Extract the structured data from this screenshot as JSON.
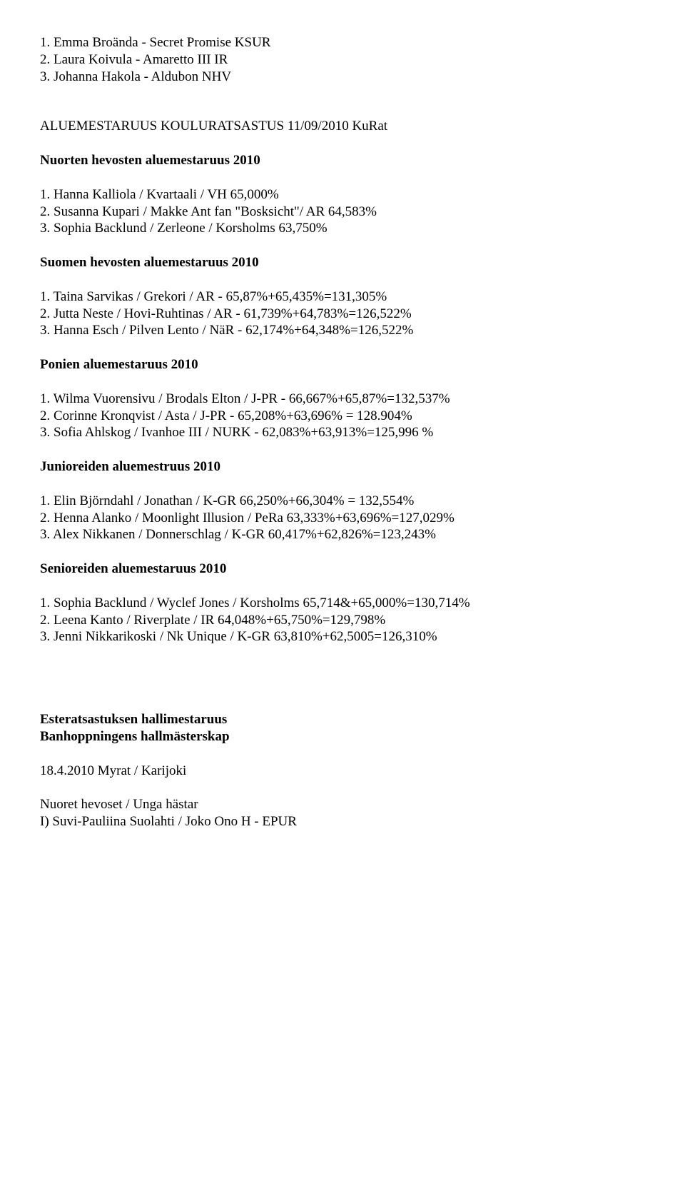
{
  "top_list": [
    "1. Emma Broända - Secret Promise KSUR",
    "2. Laura Koivula - Amaretto III IR",
    "3. Johanna Hakola - Aldubon NHV"
  ],
  "main_heading": "ALUEMESTARUUS KOULURATSASTUS 11/09/2010 KuRat",
  "sections": [
    {
      "heading": "Nuorten hevosten aluemestaruus 2010",
      "items": [
        "1. Hanna Kalliola / Kvartaali / VH 65,000%",
        "2. Susanna Kupari / Makke Ant fan \"Bosksicht\"/ AR 64,583%",
        "3. Sophia Backlund / Zerleone / Korsholms 63,750%"
      ]
    },
    {
      "heading": "Suomen hevosten aluemestaruus 2010",
      "items": [
        "1. Taina Sarvikas / Grekori / AR - 65,87%+65,435%=131,305%",
        "2. Jutta Neste / Hovi-Ruhtinas / AR - 61,739%+64,783%=126,522%",
        "3. Hanna Esch / Pilven Lento / NäR - 62,174%+64,348%=126,522%"
      ]
    },
    {
      "heading": "Ponien aluemestaruus 2010",
      "items": [
        "1. Wilma Vuorensivu / Brodals Elton / J-PR - 66,667%+65,87%=132,537%",
        "2. Corinne Kronqvist / Asta / J-PR - 65,208%+63,696% = 128.904%",
        "3. Sofia Ahlskog / Ivanhoe III / NURK - 62,083%+63,913%=125,996 %"
      ]
    },
    {
      "heading": "Junioreiden aluemestruus 2010",
      "items": [
        "1. Elin Björndahl / Jonathan / K-GR 66,250%+66,304% = 132,554%",
        "2. Henna Alanko / Moonlight Illusion / PeRa 63,333%+63,696%=127,029%",
        "3. Alex Nikkanen / Donnerschlag / K-GR 60,417%+62,826%=123,243%"
      ]
    },
    {
      "heading": "Senioreiden aluemestaruus 2010",
      "items": [
        "1. Sophia Backlund / Wyclef Jones / Korsholms 65,714&+65,000%=130,714%",
        "2. Leena Kanto / Riverplate / IR 64,048%+65,750%=129,798%",
        "3. Jenni Nikkarikoski / Nk Unique / K-GR 63,810%+62,5005=126,310%"
      ]
    }
  ],
  "footer": {
    "title_lines": [
      "Esteratsastuksen hallimestaruus",
      "Banhoppningens hallmästerskap"
    ],
    "date_line": "18.4.2010 Myrat / Karijoki",
    "sub_lines": [
      "Nuoret hevoset / Unga hästar",
      "I) Suvi-Pauliina Suolahti / Joko Ono H - EPUR"
    ]
  }
}
